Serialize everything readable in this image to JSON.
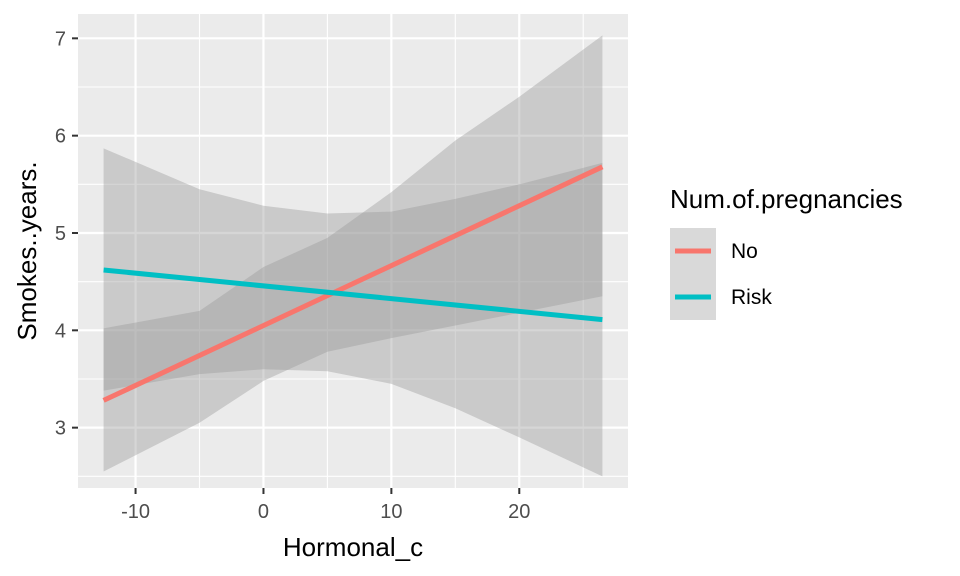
{
  "chart_data": {
    "type": "line",
    "subtype": "linear-fit-with-confidence-bands",
    "title": "",
    "xlabel": "Hormonal_c",
    "ylabel": "Smokes..years.",
    "xlim": [
      -14.5,
      28.5
    ],
    "ylim": [
      2.38,
      7.25
    ],
    "x_ticks": [
      -10,
      0,
      10,
      20
    ],
    "x_tick_labels": [
      "-10",
      "0",
      "10",
      "20"
    ],
    "y_ticks": [
      3,
      4,
      5,
      6,
      7
    ],
    "y_tick_labels": [
      "3",
      "4",
      "5",
      "6",
      "7"
    ],
    "grid": true,
    "legend": {
      "title": "Num.of.pregnancies",
      "position": "right"
    },
    "series": [
      {
        "name": "No",
        "color": "#F8766D",
        "x": [
          -12.5,
          26.5
        ],
        "values": [
          3.28,
          5.68
        ],
        "band_x": [
          -12.5,
          -5,
          0,
          5,
          10,
          15,
          20,
          26.5
        ],
        "band_lower": [
          2.55,
          3.05,
          3.48,
          3.78,
          3.92,
          4.05,
          4.18,
          4.35
        ],
        "band_upper": [
          4.02,
          4.2,
          4.65,
          4.95,
          5.42,
          5.95,
          6.4,
          7.03
        ]
      },
      {
        "name": "Risk",
        "color": "#00BFC4",
        "x": [
          -12.5,
          26.5
        ],
        "values": [
          4.62,
          4.11
        ],
        "band_x": [
          -12.5,
          -5,
          0,
          5,
          10,
          15,
          20,
          26.5
        ],
        "band_lower": [
          3.38,
          3.55,
          3.6,
          3.58,
          3.45,
          3.2,
          2.9,
          2.5
        ],
        "band_upper": [
          5.87,
          5.45,
          5.28,
          5.2,
          5.22,
          5.35,
          5.5,
          5.72
        ]
      }
    ]
  }
}
